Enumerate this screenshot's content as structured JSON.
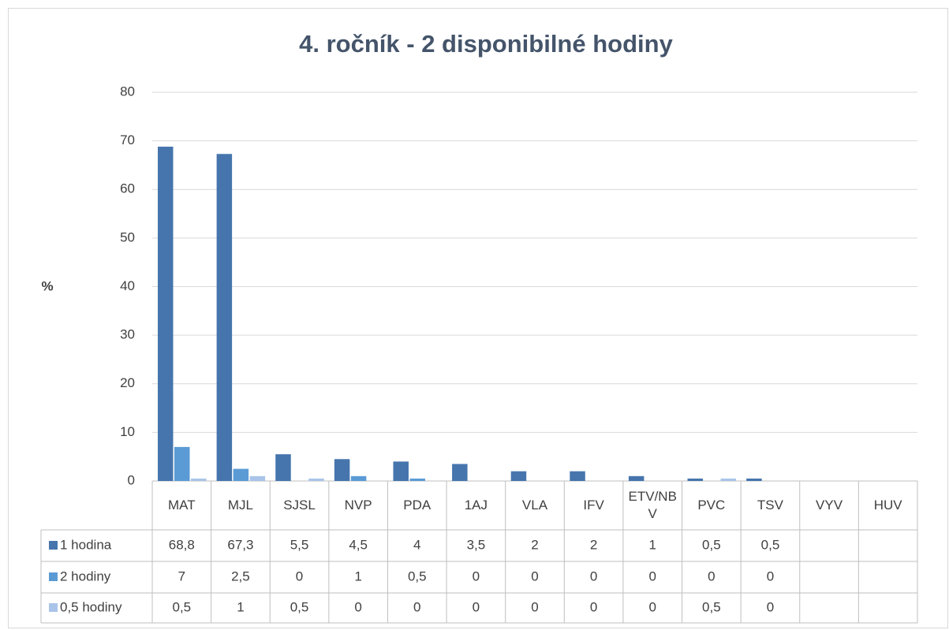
{
  "chart_data": {
    "type": "bar",
    "title": "4. ročník  - 2 disponibilné hodiny",
    "ylabel": "%",
    "categories": [
      "MAT",
      "MJL",
      "SJSL",
      "NVP",
      "PDA",
      "1AJ",
      "VLA",
      "IFV",
      "ETV/NBV",
      "PVC",
      "TSV",
      "VYV",
      "HUV"
    ],
    "series": [
      {
        "name": "1 hodina",
        "color": "#4675ad",
        "values": [
          68.8,
          67.3,
          5.5,
          4.5,
          4,
          3.5,
          2,
          2,
          1,
          0.5,
          0.5,
          null,
          null
        ],
        "value_labels": [
          "68,8",
          "67,3",
          "5,5",
          "4,5",
          "4",
          "3,5",
          "2",
          "2",
          "1",
          "0,5",
          "0,5",
          null,
          null
        ]
      },
      {
        "name": "2 hodiny",
        "color": "#5b9bd5",
        "values": [
          7,
          2.5,
          0,
          1,
          0.5,
          0,
          0,
          0,
          0,
          0,
          0,
          null,
          null
        ],
        "value_labels": [
          "7",
          "2,5",
          "0",
          "1",
          "0,5",
          "0",
          "0",
          "0",
          "0",
          "0",
          "0",
          null,
          null
        ]
      },
      {
        "name": "0,5 hodiny",
        "color": "#a9c4e8",
        "values": [
          0.5,
          1,
          0.5,
          0,
          0,
          0,
          0,
          0,
          0,
          0.5,
          0,
          null,
          null
        ],
        "value_labels": [
          "0,5",
          "1",
          "0,5",
          "0",
          "0",
          "0",
          "0",
          "0",
          "0",
          "0,5",
          "0",
          null,
          null
        ]
      }
    ],
    "ylim": [
      0,
      80
    ],
    "yticks": [
      0,
      10,
      20,
      30,
      40,
      50,
      60,
      70,
      80
    ],
    "grid": true,
    "legend": "table"
  }
}
